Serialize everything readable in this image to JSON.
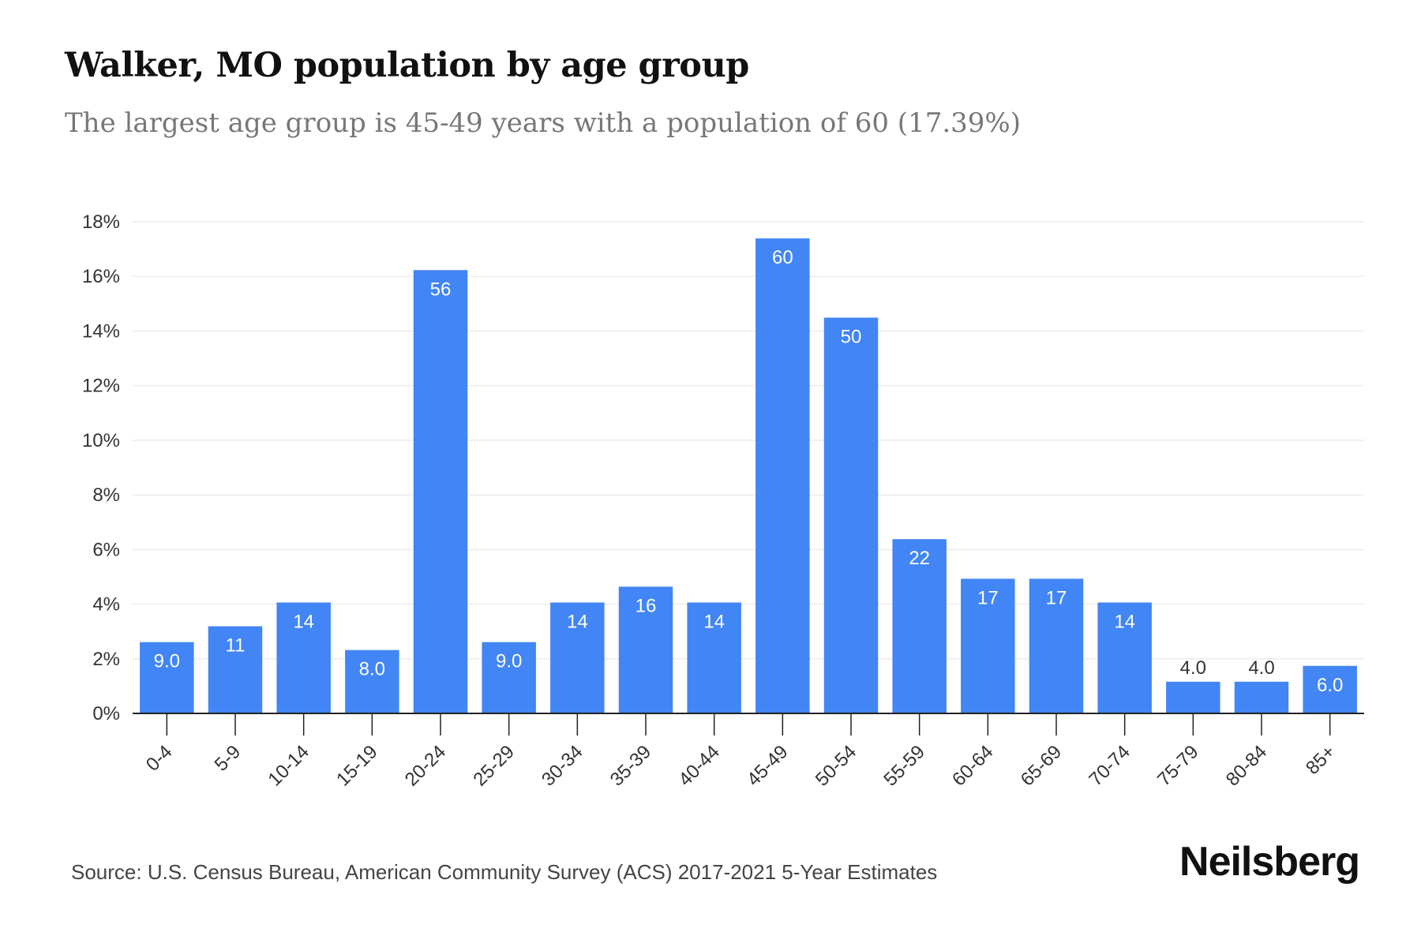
{
  "header": {
    "title": "Walker, MO population by age group",
    "subtitle": "The largest age group is 45-49 years with a population of 60 (17.39%)"
  },
  "footer": {
    "source": "Source: U.S. Census Bureau, American Community Survey (ACS) 2017-2021 5-Year Estimates",
    "brand": "Neilsberg"
  },
  "colors": {
    "bar": "#4285f4",
    "grid": "#ececec",
    "axis": "#222222",
    "tick_text": "#333333",
    "label_inside": "#ffffff",
    "label_outside": "#333333"
  },
  "chart_data": {
    "type": "bar",
    "title": "Walker, MO population by age group",
    "subtitle": "The largest age group is 45-49 years with a population of 60 (17.39%)",
    "xlabel": "",
    "ylabel": "",
    "categories": [
      "0-4",
      "5-9",
      "10-14",
      "15-19",
      "20-24",
      "25-29",
      "30-34",
      "35-39",
      "40-44",
      "45-49",
      "50-54",
      "55-59",
      "60-64",
      "65-69",
      "70-74",
      "75-79",
      "80-84",
      "85+"
    ],
    "values_percent": [
      2.61,
      3.19,
      4.06,
      2.32,
      16.23,
      2.61,
      4.06,
      4.64,
      4.06,
      17.39,
      14.49,
      6.38,
      4.93,
      4.93,
      4.06,
      1.16,
      1.16,
      1.74
    ],
    "labels": [
      "9.0",
      "11",
      "14",
      "8.0",
      "56",
      "9.0",
      "14",
      "16",
      "14",
      "60",
      "50",
      "22",
      "17",
      "17",
      "14",
      "4.0",
      "4.0",
      "6.0"
    ],
    "ylim": [
      0,
      18
    ],
    "yticks": [
      "0%",
      "2%",
      "4%",
      "6%",
      "8%",
      "10%",
      "12%",
      "14%",
      "16%",
      "18%"
    ],
    "grid": true,
    "legend": "none"
  }
}
